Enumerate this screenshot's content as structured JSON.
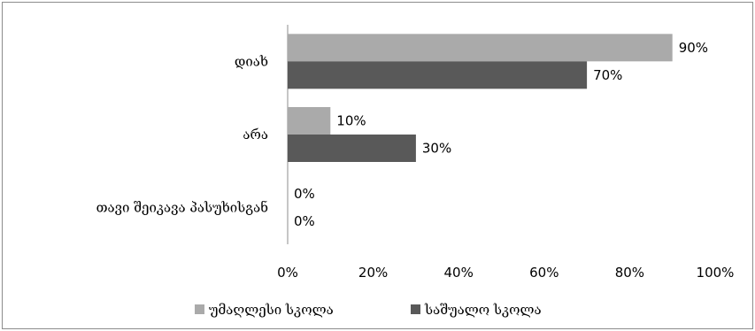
{
  "chart_data": {
    "type": "bar",
    "orientation": "horizontal",
    "categories": [
      "დიახ",
      "არა",
      "თავი შეიკავა პასუხისგან"
    ],
    "series": [
      {
        "name": "უმაღლესი სკოლა",
        "values": [
          90,
          10,
          0
        ],
        "labels": [
          "90%",
          "10%",
          "0%"
        ],
        "color": "#aaaaaa"
      },
      {
        "name": "საშუალო სკოლა",
        "values": [
          70,
          30,
          0
        ],
        "labels": [
          "70%",
          "30%",
          "0%"
        ],
        "color": "#595959"
      }
    ],
    "xlim": [
      0,
      100
    ],
    "xticks": [
      "0%",
      "20%",
      "40%",
      "60%",
      "80%",
      "100%"
    ],
    "grid": false,
    "legend_position": "bottom"
  }
}
